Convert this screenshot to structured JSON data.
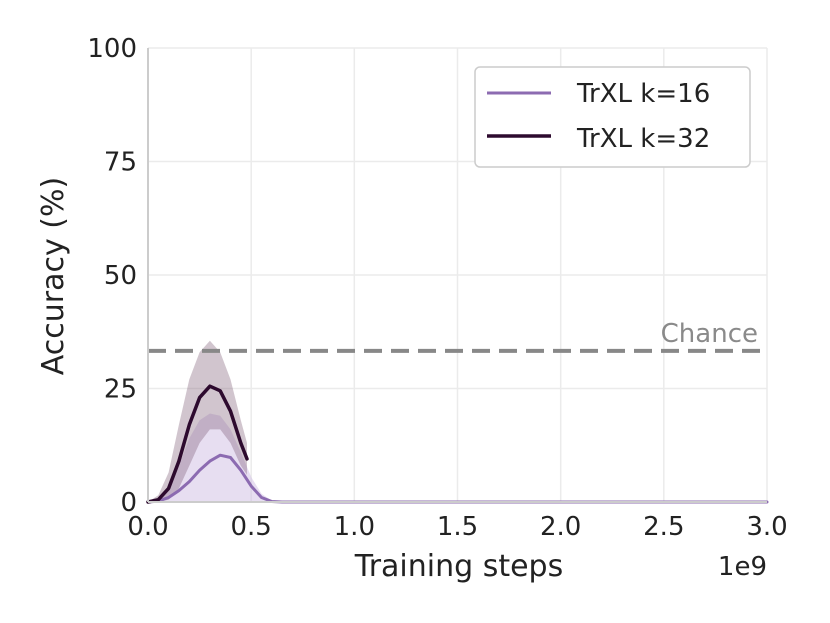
{
  "chart_data": {
    "type": "line",
    "xlabel": "Training steps",
    "ylabel": "Accuracy (%)",
    "x_offset_label": "1e9",
    "xlim": [
      0.0,
      3.0
    ],
    "ylim": [
      0,
      100
    ],
    "xticks": [
      "0.0",
      "0.5",
      "1.0",
      "1.5",
      "2.0",
      "2.5",
      "3.0"
    ],
    "yticks": [
      "0",
      "25",
      "50",
      "75",
      "100"
    ],
    "grid": true,
    "legend_position": "top-right",
    "reference_line": {
      "label": "Chance",
      "y": 33.3,
      "color": "#888888"
    },
    "series": [
      {
        "name": "TrXL k=16",
        "color": "#8c6bb1",
        "band_color": "#c9b6df",
        "x": [
          0.0,
          0.05,
          0.1,
          0.15,
          0.2,
          0.25,
          0.3,
          0.35,
          0.4,
          0.45,
          0.5,
          0.55,
          0.6,
          0.65,
          0.7,
          1.0,
          1.5,
          2.0,
          2.5,
          3.0
        ],
        "y": [
          0,
          0.2,
          1.0,
          2.5,
          4.5,
          7.0,
          9.0,
          10.3,
          9.8,
          7.0,
          3.5,
          1.0,
          0.1,
          0,
          0,
          0,
          0,
          0,
          0,
          0
        ],
        "lower": [
          0,
          0,
          0,
          0,
          0,
          0,
          0,
          0,
          0,
          0,
          0,
          0,
          0,
          0,
          0,
          0,
          0,
          0,
          0,
          0
        ],
        "upper": [
          0,
          0.5,
          3.0,
          8.0,
          14.0,
          18.0,
          19.5,
          19.0,
          16.0,
          11.0,
          5.5,
          1.8,
          0.3,
          0,
          0,
          0,
          0,
          0,
          0,
          0
        ]
      },
      {
        "name": "TrXL k=32",
        "color": "#2d0a2e",
        "band_color": "#7a5a72",
        "x": [
          0.0,
          0.05,
          0.1,
          0.15,
          0.2,
          0.25,
          0.3,
          0.35,
          0.4,
          0.45,
          0.48
        ],
        "y": [
          0,
          0.5,
          3.0,
          9.0,
          17.0,
          23.0,
          25.5,
          24.5,
          20.0,
          13.0,
          9.5
        ],
        "lower": [
          0,
          0,
          0.5,
          3.0,
          8.0,
          13.0,
          16.0,
          16.0,
          13.0,
          8.0,
          6.0
        ],
        "upper": [
          0,
          1.5,
          6.5,
          17.0,
          27.0,
          33.0,
          35.5,
          33.0,
          27.0,
          18.0,
          13.0
        ]
      }
    ]
  }
}
